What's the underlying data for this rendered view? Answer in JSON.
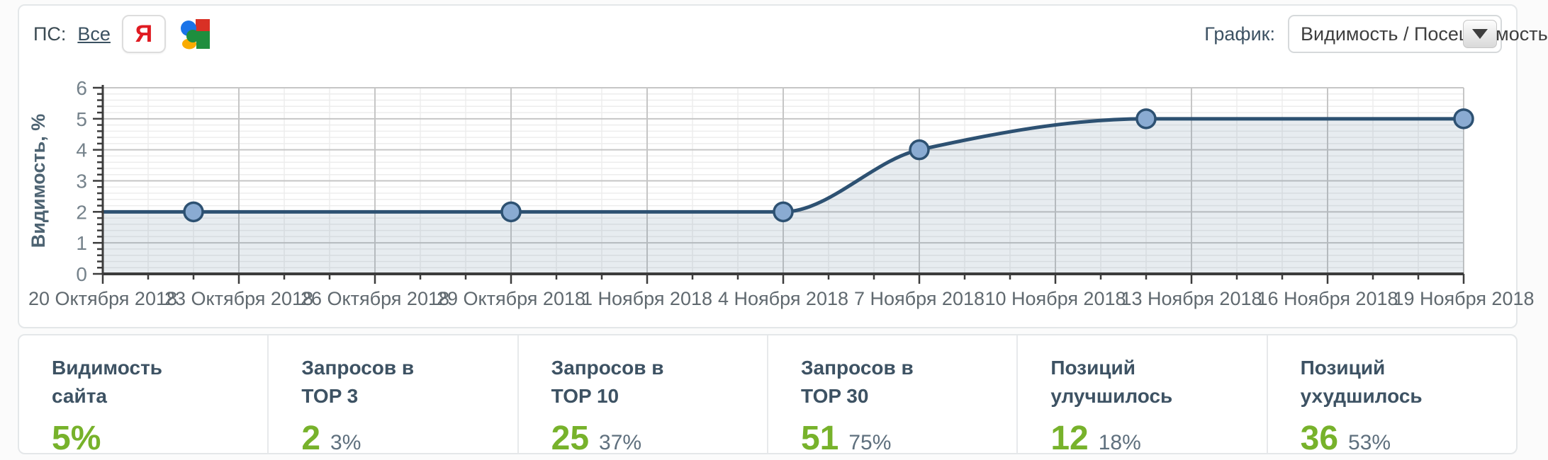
{
  "toolbar": {
    "search_engines_label": "ПС:",
    "all_link": "Все",
    "yandex_letter": "Я",
    "chart_select_label": "График:",
    "chart_select_value": "Видимость / Посещаемость"
  },
  "chart_data": {
    "type": "area",
    "title": "",
    "xlabel": "",
    "ylabel": "Видимость, %",
    "ylim": [
      0,
      6
    ],
    "y_major_step": 1,
    "y_minor_step": 0.2,
    "x_total_days": 30,
    "x_minor_step_days": 1,
    "grid": true,
    "legend_position": "none",
    "x_ticks": [
      {
        "day": 0,
        "label": "20 Октября 2018"
      },
      {
        "day": 3,
        "label": "23 Октября 2018"
      },
      {
        "day": 6,
        "label": "26 Октября 2018"
      },
      {
        "day": 9,
        "label": "29 Октября 2018"
      },
      {
        "day": 12,
        "label": "1 Ноября 2018"
      },
      {
        "day": 15,
        "label": "4 Ноября 2018"
      },
      {
        "day": 18,
        "label": "7 Ноября 2018"
      },
      {
        "day": 21,
        "label": "10 Ноября 2018"
      },
      {
        "day": 24,
        "label": "13 Ноября 2018"
      },
      {
        "day": 27,
        "label": "16 Ноября 2018"
      },
      {
        "day": 30,
        "label": "19 Ноября 2018"
      }
    ],
    "series": [
      {
        "name": "Видимость, %",
        "points": [
          {
            "day": 0,
            "value": 2,
            "marker": false
          },
          {
            "day": 2,
            "value": 2,
            "marker": true
          },
          {
            "day": 9,
            "value": 2,
            "marker": true
          },
          {
            "day": 15,
            "value": 2,
            "marker": true
          },
          {
            "day": 18,
            "value": 4,
            "marker": true
          },
          {
            "day": 23,
            "value": 5,
            "marker": true
          },
          {
            "day": 30,
            "value": 5,
            "marker": true
          }
        ]
      }
    ],
    "colors": {
      "line": "#2d5172",
      "marker_fill": "#8aabd2",
      "marker_stroke": "#2d5172",
      "area": "rgba(61,99,134,0.12)",
      "grid_major": "#c6c6c6",
      "grid_minor": "#ededed",
      "axis": "#3c3c3c",
      "tick_label": "#75828b",
      "x_label": "#60696f",
      "axis_title": "#4d6372"
    }
  },
  "stats": {
    "accent_color": "#77b22b",
    "items": [
      {
        "label": "Видимость сайта",
        "value": "5%",
        "share": ""
      },
      {
        "label": "Запросов в TOP 3",
        "value": "2",
        "share": "3%"
      },
      {
        "label": "Запросов в TOP 10",
        "value": "25",
        "share": "37%"
      },
      {
        "label": "Запросов в TOP 30",
        "value": "51",
        "share": "75%"
      },
      {
        "label": "Позиций улучшилось",
        "value": "12",
        "share": "18%"
      },
      {
        "label": "Позиций ухудшилось",
        "value": "36",
        "share": "53%"
      }
    ]
  }
}
